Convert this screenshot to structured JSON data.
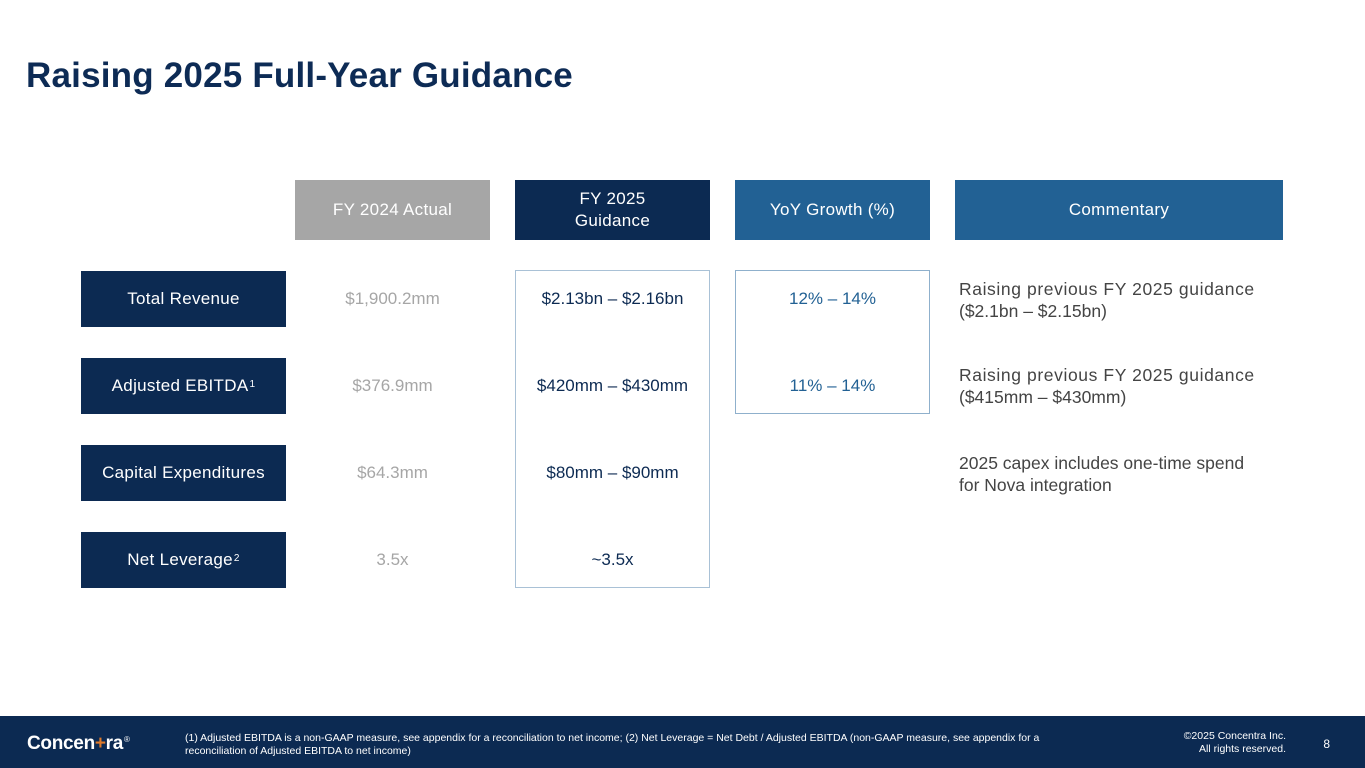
{
  "title": "Raising 2025 Full-Year Guidance",
  "columns": {
    "actual": "FY 2024 Actual",
    "guidance_line1": "FY 2025",
    "guidance_line2": "Guidance",
    "growth": "YoY Growth (%)",
    "commentary": "Commentary"
  },
  "rows": [
    {
      "label": "Total Revenue",
      "superscript": "",
      "actual": "$1,900.2mm",
      "guidance": "$2.13bn – $2.16bn",
      "growth": "12% – 14%",
      "comment_line1": "Raising previous FY 2025 guidance",
      "comment_line2": "($2.1bn – $2.15bn)"
    },
    {
      "label": "Adjusted EBITDA",
      "superscript": "1",
      "actual": "$376.9mm",
      "guidance": "$420mm – $430mm",
      "growth": "11% – 14%",
      "comment_line1": "Raising previous FY 2025 guidance",
      "comment_line2": "($415mm – $430mm)"
    },
    {
      "label": "Capital Expenditures",
      "superscript": "",
      "actual": "$64.3mm",
      "guidance": "$80mm – $90mm",
      "growth": "",
      "comment_line1": "2025 capex includes one-time spend",
      "comment_line2": "for Nova integration"
    },
    {
      "label": "Net Leverage",
      "superscript": "2",
      "actual": "3.5x",
      "guidance": "~3.5x",
      "growth": "",
      "comment_line1": "",
      "comment_line2": ""
    }
  ],
  "footer": {
    "logo_pre": "Concen",
    "logo_cross": "+",
    "logo_post": "ra",
    "logo_reg": "®",
    "footnote": "(1) Adjusted EBITDA is a non-GAAP measure, see appendix for a reconciliation to net income; (2) Net Leverage = Net Debt / Adjusted EBITDA (non-GAAP measure, see appendix for a reconciliation of Adjusted EBITDA to net income)",
    "copyright_line1": "©2025 Concentra Inc.",
    "copyright_line2": "All rights reserved.",
    "page_number": "8"
  },
  "colors": {
    "navy": "#0c2a52",
    "blue": "#226194",
    "gray": "#a6a6a6",
    "accent_orange": "#e07a2a"
  }
}
